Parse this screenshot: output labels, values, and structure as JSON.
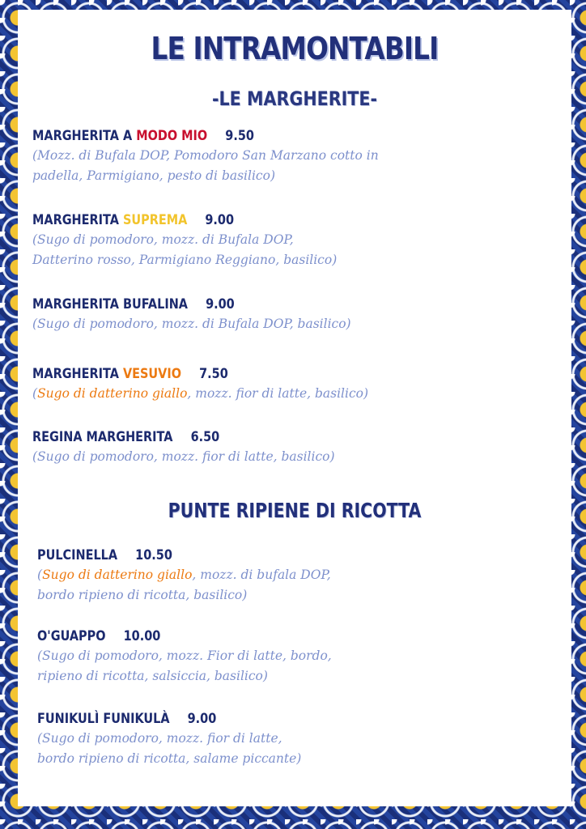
{
  "title": "LE INTRAMONTABILI",
  "subtitle": "-LE MARGHERITE-",
  "section2": "PUNTE RIPIENE DI RICOTTA",
  "colors": {
    "navy": "#1c2a6e",
    "desc": "#7d90cc",
    "red": "#c8102e",
    "yellow": "#f2c42c",
    "orange": "#ec7a12"
  },
  "items": [
    {
      "name": [
        "MARGHERITA A ",
        "MODO MIO"
      ],
      "price": "9.50",
      "desc1": [
        "(Mozz. di Bufala DOP, Pomodoro San Marzano cotto in",
        ""
      ],
      "desc2": "padella, Parmigiano, pesto di basilico)"
    },
    {
      "name": [
        "MARGHERITA ",
        "SUPREMA"
      ],
      "price": "9.00",
      "desc1": [
        "(Sugo di pomodoro, mozz. di Bufala DOP,",
        ""
      ],
      "desc2": "Datterino rosso, Parmigiano Reggiano, basilico)"
    },
    {
      "name": [
        "MARGHERITA BUFALINA",
        ""
      ],
      "price": "9.00",
      "desc1": [
        "(Sugo di pomodoro, mozz. di Bufala DOP, basilico)",
        ""
      ],
      "desc2": ""
    },
    {
      "name": [
        "MARGHERITA ",
        "VESUVIO"
      ],
      "price": "7.50",
      "desc1": [
        "(",
        "Sugo di datterino giallo",
        ", mozz. fior di latte, basilico)"
      ],
      "desc2": ""
    },
    {
      "name": [
        "REGINA MARGHERITA",
        ""
      ],
      "price": "6.50",
      "desc1": [
        "(Sugo di pomodoro, mozz. fior di latte, basilico)",
        ""
      ],
      "desc2": ""
    },
    {
      "name": [
        "PULCINELLA",
        ""
      ],
      "price": "10.50",
      "desc1": [
        "(",
        "Sugo di datterino giallo",
        ", mozz. di bufala DOP,"
      ],
      "desc2": "bordo ripieno di ricotta, basilico)"
    },
    {
      "name": [
        "O'GUAPPO",
        ""
      ],
      "price": "10.00",
      "desc1": [
        "(Sugo di pomodoro, mozz. Fior di latte, bordo,",
        ""
      ],
      "desc2": "ripieno di ricotta, salsiccia, basilico)"
    },
    {
      "name": [
        "FUNIKULÌ FUNIKULÀ",
        ""
      ],
      "price": "9.00",
      "desc1": [
        "(Sugo di pomodoro, mozz. fior di latte,",
        ""
      ],
      "desc2": "bordo ripieno di ricotta, salame piccante)"
    }
  ]
}
